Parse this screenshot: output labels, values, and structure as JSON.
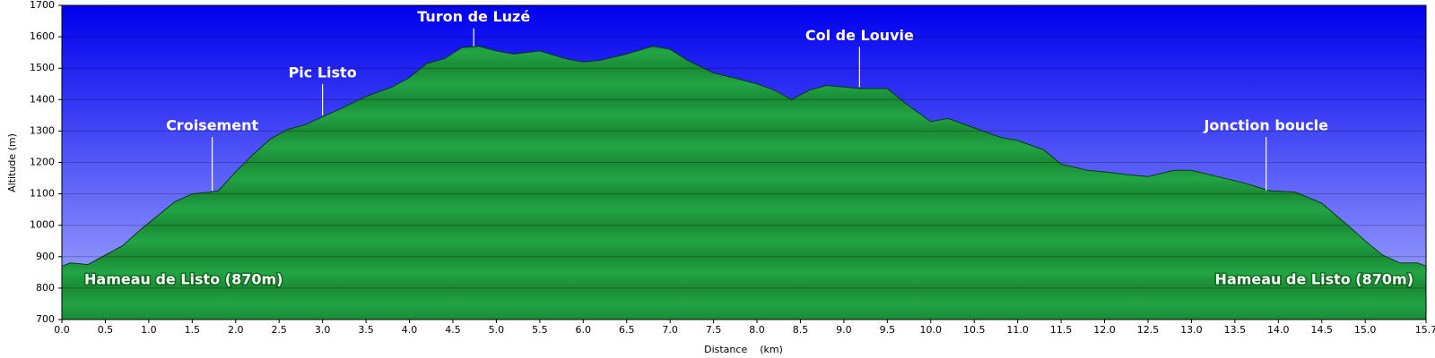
{
  "chart_data": {
    "type": "area",
    "xlabel": "Distance    (km)",
    "ylabel": "Altitude (m)",
    "color": "#22a545",
    "x": [
      0.0,
      0.1,
      0.3,
      0.5,
      0.7,
      0.9,
      1.1,
      1.3,
      1.5,
      1.7,
      1.8,
      2.0,
      2.2,
      2.4,
      2.6,
      2.8,
      3.0,
      3.2,
      3.5,
      3.8,
      4.0,
      4.2,
      4.4,
      4.6,
      4.8,
      5.0,
      5.2,
      5.5,
      5.8,
      6.0,
      6.2,
      6.5,
      6.8,
      7.0,
      7.2,
      7.5,
      7.8,
      8.0,
      8.2,
      8.4,
      8.6,
      8.8,
      9.0,
      9.2,
      9.5,
      9.7,
      10.0,
      10.2,
      10.5,
      10.8,
      11.0,
      11.3,
      11.5,
      11.8,
      12.0,
      12.3,
      12.5,
      12.8,
      13.0,
      13.3,
      13.6,
      13.9,
      14.2,
      14.5,
      14.8,
      15.0,
      15.2,
      15.4,
      15.6,
      15.7
    ],
    "values": [
      870,
      880,
      875,
      905,
      935,
      985,
      1030,
      1075,
      1100,
      1105,
      1110,
      1170,
      1225,
      1275,
      1305,
      1320,
      1345,
      1370,
      1410,
      1440,
      1470,
      1515,
      1530,
      1565,
      1570,
      1555,
      1545,
      1555,
      1530,
      1520,
      1525,
      1545,
      1570,
      1560,
      1525,
      1485,
      1465,
      1450,
      1430,
      1400,
      1430,
      1445,
      1440,
      1435,
      1435,
      1390,
      1330,
      1340,
      1310,
      1280,
      1270,
      1240,
      1195,
      1175,
      1170,
      1160,
      1155,
      1175,
      1175,
      1155,
      1135,
      1110,
      1105,
      1070,
      1000,
      950,
      905,
      880,
      880,
      870
    ],
    "xlim": [
      0,
      15.7
    ],
    "ylim": [
      700,
      1700
    ],
    "yticks": [
      700,
      800,
      900,
      1000,
      1100,
      1200,
      1300,
      1400,
      1500,
      1600,
      1700
    ],
    "xticks": [
      {
        "value": 0,
        "label": "0.0"
      },
      0.5,
      {
        "value": 1,
        "label": "1.0"
      },
      1.5,
      {
        "value": 2,
        "label": "2.0"
      },
      2.5,
      {
        "value": 3,
        "label": "3.0"
      },
      3.5,
      {
        "value": 4,
        "label": "4.0"
      },
      4.5,
      {
        "value": 5,
        "label": "5.0"
      },
      5.5,
      {
        "value": 6,
        "label": "6.0"
      },
      6.5,
      {
        "value": 7,
        "label": "7.0"
      },
      7.5,
      {
        "value": 8,
        "label": "8.0"
      },
      8.5,
      {
        "value": 9,
        "label": "9.0"
      },
      9.5,
      {
        "value": 10,
        "label": "10.0"
      },
      10.5,
      {
        "value": 11,
        "label": "11.0"
      },
      11.5,
      {
        "value": 12,
        "label": "12.0"
      },
      12.5,
      {
        "value": 13,
        "label": "13.0"
      },
      13.5,
      {
        "value": 14,
        "label": "14.0"
      },
      14.5,
      {
        "value": 15,
        "label": "15.0"
      },
      15.7
    ],
    "grid": true,
    "annotations": [
      {
        "text": "Croisement",
        "x": 1.73,
        "y": 1110
      },
      {
        "text": "Pic Listo",
        "x": 3.0,
        "y": 1350
      },
      {
        "text": "Turon de Luzé",
        "x": 4.74,
        "y": 1570
      },
      {
        "text": "Col de Louvie",
        "x": 9.18,
        "y": 1440
      },
      {
        "text": "Jonction boucle",
        "x": 13.86,
        "y": 1110
      }
    ],
    "corner_labels": [
      "Hameau de Listo (870m)",
      "Hameau de Listo (870m)"
    ]
  }
}
